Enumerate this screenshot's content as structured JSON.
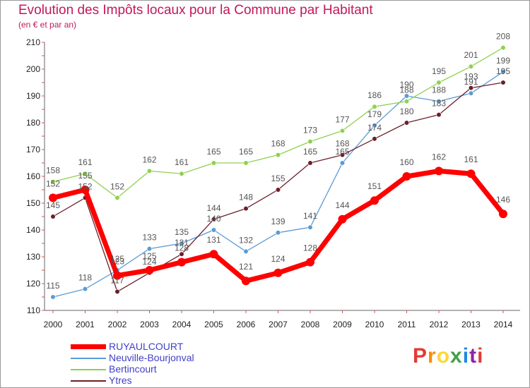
{
  "header": {
    "title": "Evolution des Impôts locaux pour la Commune par Habitant",
    "subtitle": "(en € et par an)"
  },
  "logo": {
    "text": "Proxiti",
    "colors": [
      "#e53935",
      "#fb8c00",
      "#fdd835",
      "#43a047",
      "#1e88e5",
      "#8e24aa",
      "#e53935"
    ]
  },
  "chart_data": {
    "type": "line",
    "x": [
      "2000",
      "2001",
      "2002",
      "2003",
      "2004",
      "2005",
      "2006",
      "2007",
      "2008",
      "2009",
      "2010",
      "2011",
      "2012",
      "2013",
      "2014"
    ],
    "ylim": [
      110,
      210
    ],
    "yticks": [
      110,
      120,
      130,
      140,
      150,
      160,
      170,
      180,
      190,
      200,
      210
    ],
    "grid": false,
    "legend_position": "bottom-left",
    "series": [
      {
        "name": "RUYAULCOURT",
        "color": "#ff0000",
        "values": [
          152,
          155,
          123,
          125,
          128,
          131,
          121,
          124,
          128,
          144,
          151,
          160,
          162,
          161,
          146
        ]
      },
      {
        "name": "Neuville-Bourjonval",
        "color": "#5b9bd5",
        "values": [
          115,
          118,
          125,
          133,
          135,
          140,
          132,
          139,
          141,
          165,
          179,
          190,
          188,
          191,
          199
        ]
      },
      {
        "name": "Bertincourt",
        "color": "#8fd14f",
        "values": [
          158,
          161,
          152,
          162,
          161,
          165,
          165,
          168,
          173,
          177,
          186,
          188,
          195,
          201,
          208
        ]
      },
      {
        "name": "Ytres",
        "color": "#6b1f2a",
        "values": [
          145,
          152,
          117,
          124,
          131,
          144,
          148,
          155,
          165,
          168,
          174,
          180,
          183,
          193,
          195
        ]
      }
    ]
  }
}
